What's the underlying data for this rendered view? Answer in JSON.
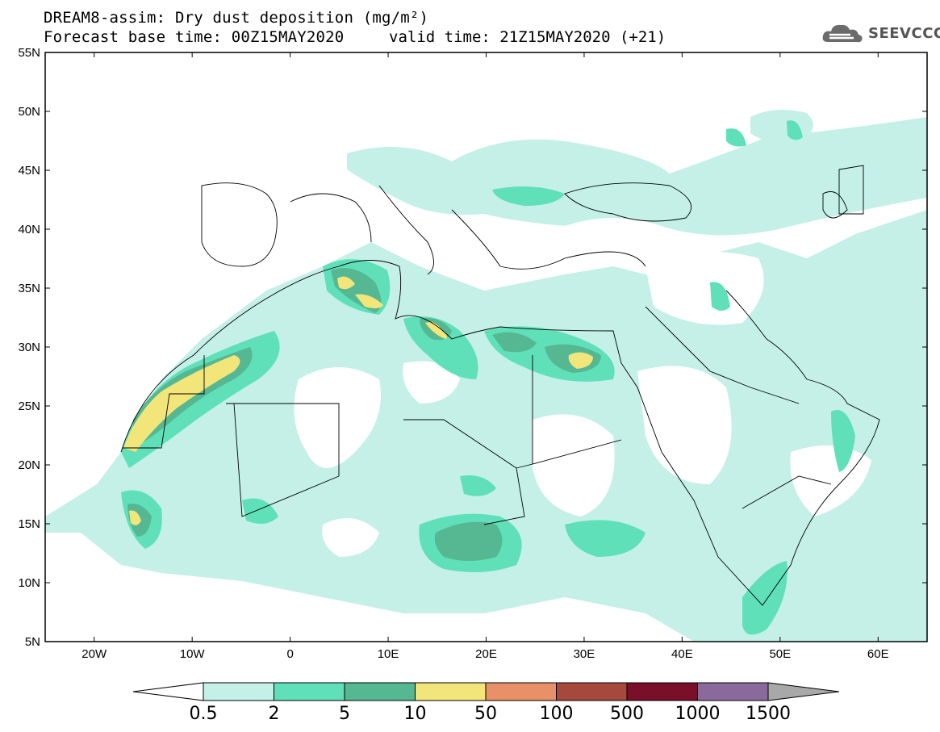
{
  "header": {
    "title_line1": "DREAM8-assim: Dry dust deposition (mg/m²)",
    "title_line2": "Forecast base time: 00Z15MAY2020",
    "valid_time": "valid time: 21Z15MAY2020 (+21)"
  },
  "logo": {
    "text": "SEEVCCC",
    "icon": "cloud-logo-icon"
  },
  "map": {
    "lat_labels": [
      "55N",
      "50N",
      "45N",
      "40N",
      "35N",
      "30N",
      "25N",
      "20N",
      "15N",
      "10N",
      "5N"
    ],
    "lon_labels": [
      "20W",
      "10W",
      "0",
      "10E",
      "20E",
      "30E",
      "40E",
      "50E",
      "60E"
    ]
  },
  "colorbar": {
    "labels": [
      "0.5",
      "2",
      "5",
      "10",
      "50",
      "100",
      "500",
      "1000",
      "1500"
    ],
    "colors": [
      "#c4f0e8",
      "#5fe0b8",
      "#55b893",
      "#f2e57a",
      "#e89068",
      "#a5493d",
      "#7a0f2a",
      "#8a6a9c"
    ],
    "under_color": "#ffffff",
    "over_color": "#a8a8a8"
  }
}
